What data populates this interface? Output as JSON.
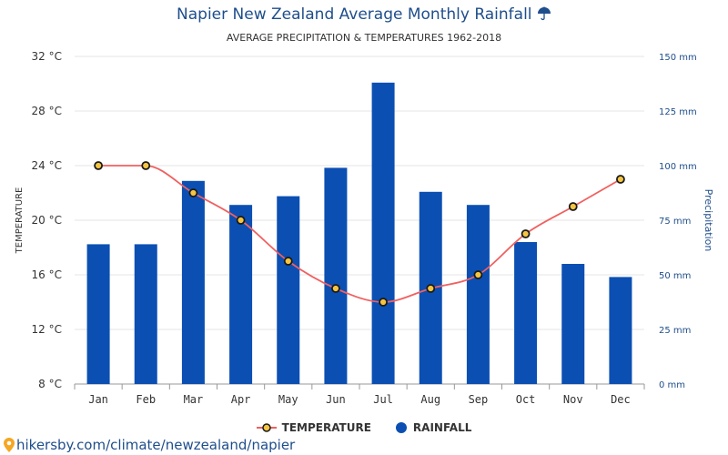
{
  "title": "Napier New Zealand Average Monthly Rainfall",
  "title_icon": "umbrella-icon",
  "subtitle": "AVERAGE PRECIPITATION & TEMPERATURES 1962-2018",
  "footer_text": "hikersby.com/climate/newzealand/napier",
  "footer_icon": "map-pin-icon",
  "colors": {
    "bar": "#0b4fb3",
    "line": "#f06060",
    "marker_fill": "#f5c542",
    "marker_stroke": "#1a1a1a",
    "title": "#1f4e8c",
    "right_axis": "#1f4e8c"
  },
  "chart_data": {
    "type": "bar",
    "categories": [
      "Jan",
      "Feb",
      "Mar",
      "Apr",
      "May",
      "Jun",
      "Jul",
      "Aug",
      "Sep",
      "Oct",
      "Nov",
      "Dec"
    ],
    "series": [
      {
        "name": "RAINFALL",
        "type": "bar",
        "axis": "right",
        "values": [
          64,
          64,
          93,
          82,
          86,
          99,
          138,
          88,
          82,
          65,
          55,
          49
        ]
      },
      {
        "name": "TEMPERATURE",
        "type": "line",
        "axis": "left",
        "values": [
          24,
          24,
          22,
          20,
          17,
          15,
          14,
          15,
          16,
          19,
          21,
          23
        ]
      }
    ],
    "left_axis": {
      "label": "TEMPERATURE",
      "ticks": [
        "32 °C",
        "28 °C",
        "24 °C",
        "20 °C",
        "16 °C",
        "12 °C",
        "8 °C"
      ],
      "range": [
        8,
        32
      ]
    },
    "right_axis": {
      "label": "Precipitation",
      "ticks": [
        "150 mm",
        "125 mm",
        "100 mm",
        "75 mm",
        "50 mm",
        "25 mm",
        "0 mm"
      ],
      "range": [
        0,
        150
      ]
    },
    "grid": true,
    "legend_position": "bottom-center"
  }
}
